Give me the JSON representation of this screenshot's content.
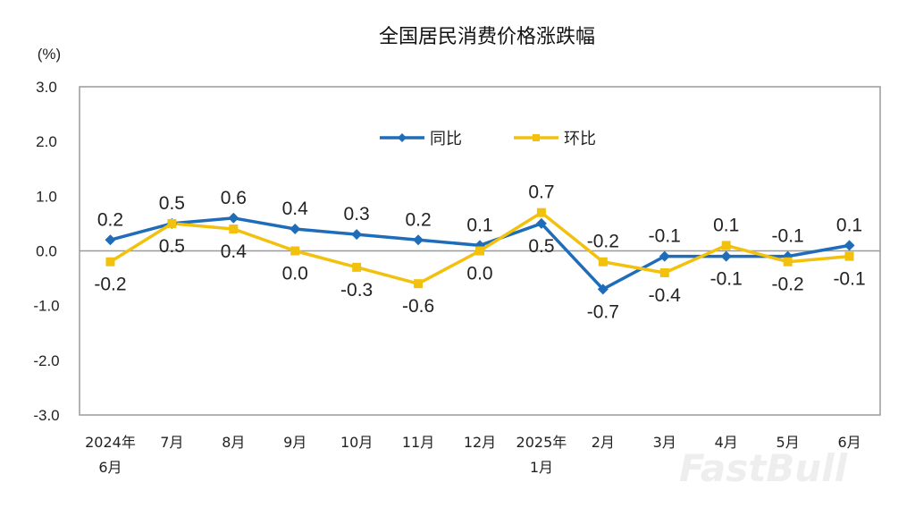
{
  "chart_data": {
    "type": "line",
    "title": "全国居民消费价格涨跌幅",
    "ylabel": "(%)",
    "xlabel": "",
    "ylim": [
      -3.0,
      3.0
    ],
    "yticks": [
      "3.0",
      "2.0",
      "1.0",
      "0.0",
      "-1.0",
      "-2.0",
      "-3.0"
    ],
    "categories": [
      "2024年\n6月",
      "7月",
      "8月",
      "9月",
      "10月",
      "11月",
      "12月",
      "2025年\n1月",
      "2月",
      "3月",
      "4月",
      "5月",
      "6月"
    ],
    "legend_position": "top-center",
    "grid": false,
    "series": [
      {
        "name": "同比",
        "color": "#1f6cb8",
        "marker": "diamond",
        "values": [
          0.2,
          0.5,
          0.6,
          0.4,
          0.3,
          0.2,
          0.1,
          0.5,
          -0.7,
          -0.1,
          -0.1,
          -0.1,
          0.1
        ]
      },
      {
        "name": "环比",
        "color": "#f2c10e",
        "marker": "square",
        "values": [
          -0.2,
          0.5,
          0.4,
          0.0,
          -0.3,
          -0.6,
          0.0,
          0.7,
          -0.2,
          -0.4,
          0.1,
          -0.2,
          -0.1
        ]
      }
    ]
  },
  "watermark": "FastBull"
}
